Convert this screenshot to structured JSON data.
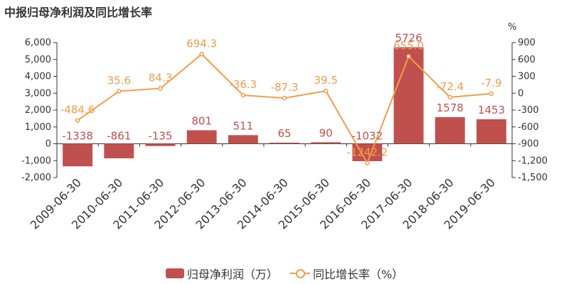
{
  "title": "中报归母净利润及同比增长率",
  "chart_data": {
    "type": "bar",
    "title": "中报归母净利润及同比增长率",
    "categories": [
      "2009-06-30",
      "2010-06-30",
      "2011-06-30",
      "2012-06-30",
      "2013-06-30",
      "2014-06-30",
      "2015-06-30",
      "2016-06-30",
      "2017-06-30",
      "2018-06-30",
      "2019-06-30"
    ],
    "series": [
      {
        "name": "归母净利润（万）",
        "type": "bar",
        "axis": "left",
        "color": "#c0504d",
        "values": [
          -1338,
          -861,
          -135,
          801,
          511,
          65,
          90,
          -1032,
          5726,
          1578,
          1453
        ],
        "labels": [
          "-1338",
          "-861",
          "-135",
          "801",
          "511",
          "65",
          "90",
          "-1032",
          "5726",
          "1578",
          "1453"
        ]
      },
      {
        "name": "同比增长率（%）",
        "type": "line",
        "axis": "right",
        "color": "#f39c4a",
        "values": [
          -484.6,
          35.6,
          84.3,
          694.3,
          -36.3,
          -87.3,
          39.5,
          -1242.2,
          655.0,
          -72.4,
          -7.9
        ],
        "labels": [
          "-484.6",
          "35.6",
          "84.3",
          "694.3",
          "-36.3",
          "-87.3",
          "39.5",
          "-1242.2",
          "655.0",
          "-72.4",
          "-7.9"
        ]
      }
    ],
    "y_left": {
      "ylim": [
        -2000,
        6000
      ],
      "ticks": [
        -2000,
        -1000,
        0,
        1000,
        2000,
        3000,
        4000,
        5000,
        6000
      ],
      "tick_labels": [
        "-2,000",
        "-1,000",
        "0",
        "1,000",
        "2,000",
        "3,000",
        "4,000",
        "5,000",
        "6,000"
      ]
    },
    "y_right": {
      "ylim": [
        -1500,
        900
      ],
      "unit": "%",
      "ticks": [
        -1500,
        -1200,
        -900,
        -600,
        -300,
        0,
        300,
        600,
        900
      ],
      "tick_labels": [
        "-1,500",
        "-1,200",
        "-900",
        "-600",
        "-300",
        "0",
        "300",
        "600",
        "900"
      ]
    },
    "grid": false,
    "legend": "bottom"
  }
}
